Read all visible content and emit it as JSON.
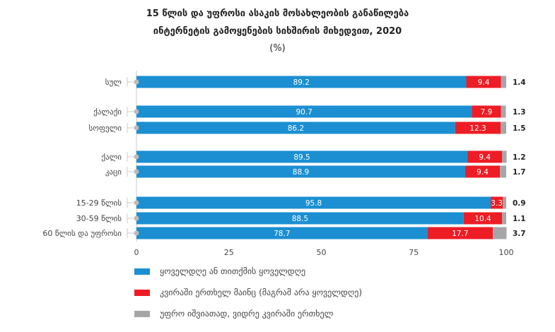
{
  "chart_data": {
    "type": "bar",
    "orientation": "horizontal",
    "stacked": true,
    "title": [
      "15 წლის და უფროსი ასაკის მოსახლეობის განაწილება",
      "ინტერნეტის გამოყენების სიხშირის მიხედვით, 2020",
      "(%)"
    ],
    "categories": [
      "სულ",
      "ქალაქი",
      "სოფელი",
      "ქალი",
      "კაცი",
      "15-29 წლის",
      "30-59 წლის",
      "60 წლის და უფროსი"
    ],
    "series": [
      {
        "name": "ყოველდღე ან თითქმის ყოველდღე",
        "color": "#1b8fd2",
        "values": [
          89.2,
          90.7,
          86.2,
          89.5,
          88.9,
          95.8,
          88.5,
          78.7
        ]
      },
      {
        "name": "კვირაში ერთხელ მაინც (მაგრამ არა ყოველდღე)",
        "color": "#ee1c25",
        "values": [
          9.4,
          7.9,
          12.3,
          9.4,
          9.4,
          3.3,
          10.4,
          17.7
        ]
      },
      {
        "name": "უფრო იშვიათად, ვიდრე კვირაში ერთხელ",
        "color": "#a6a6a8",
        "values": [
          1.4,
          1.3,
          1.5,
          1.2,
          1.7,
          0.9,
          1.1,
          3.7
        ]
      }
    ],
    "xlim": [
      0,
      100
    ],
    "xticks": [
      "0",
      "25",
      "50",
      "75",
      "100"
    ],
    "legend_position": "bottom"
  }
}
